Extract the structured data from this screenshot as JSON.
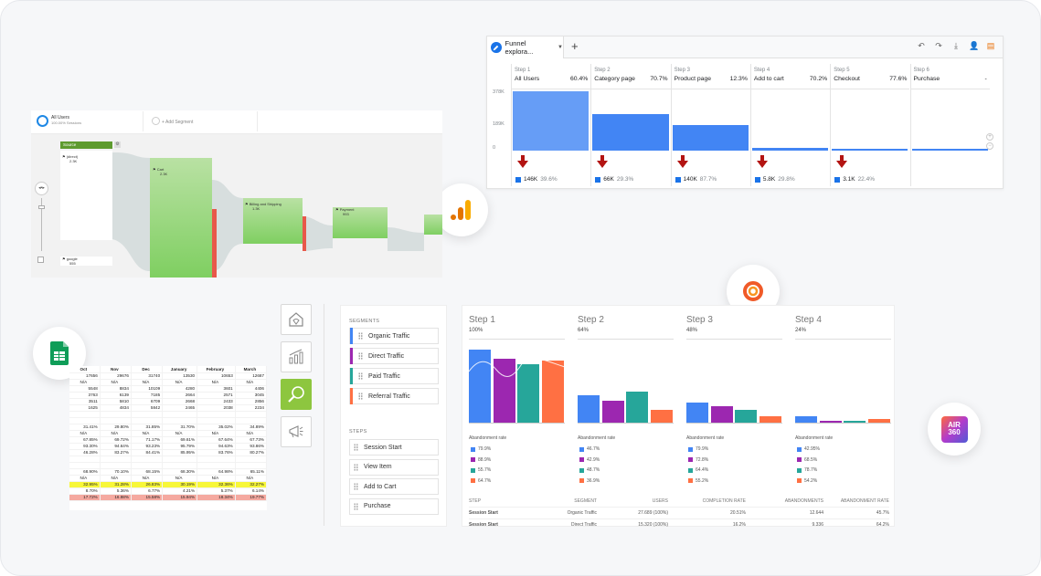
{
  "ga": {
    "tab_label": "Funnel explora...",
    "steps": [
      {
        "step": "Step 1",
        "name": "All Users",
        "pct": "60.4%",
        "drop": "146K",
        "drop_pct": "39.6%"
      },
      {
        "step": "Step 2",
        "name": "Category page",
        "pct": "70.7%",
        "drop": "66K",
        "drop_pct": "29.3%"
      },
      {
        "step": "Step 3",
        "name": "Product page",
        "pct": "12.3%",
        "drop": "140K",
        "drop_pct": "87.7%"
      },
      {
        "step": "Step 4",
        "name": "Add to cart",
        "pct": "70.2%",
        "drop": "5.8K",
        "drop_pct": "29.8%"
      },
      {
        "step": "Step 5",
        "name": "Checkout",
        "pct": "77.6%",
        "drop": "3.1K",
        "drop_pct": "22.4%"
      },
      {
        "step": "Step 6",
        "name": "Purchase",
        "pct": "-",
        "drop": "",
        "drop_pct": ""
      }
    ],
    "axis": [
      "378K",
      "189K",
      "0"
    ],
    "bar_values_k": [
      368,
      223,
      158,
      19,
      14,
      10
    ]
  },
  "ua": {
    "segment_name": "All Users",
    "segment_sub": "100.00% Sessions",
    "add_segment": "+ Add Segment",
    "source_label": "Source",
    "nodes": {
      "direct": "(direct)",
      "direct_val": "2.3K",
      "cart": "Cart",
      "cart_val": "2.3K",
      "billing": "Billing and Shipping",
      "billing_val": "1.3K",
      "payment": "Payment",
      "payment_val": "993",
      "google": "google",
      "google_val": "555"
    }
  },
  "sheet": {
    "header": [
      "Oct",
      "Nov",
      "Dec",
      "January",
      "February",
      "March"
    ],
    "rows": [
      [
        "17656",
        "29676",
        "31740",
        "13530",
        "10653",
        "12687"
      ],
      [
        "N/A",
        "N/A",
        "N/A",
        "N/A",
        "N/A",
        "N/A"
      ],
      [
        "5548",
        "8834",
        "10109",
        "4280",
        "3601",
        "4406"
      ],
      [
        "3763",
        "6139",
        "7185",
        "2664",
        "2571",
        "3045"
      ],
      [
        "3511",
        "5810",
        "6709",
        "2668",
        "2433",
        "2856"
      ],
      [
        "1625",
        "4834",
        "5842",
        "2465",
        "2038",
        "2234"
      ]
    ],
    "rows2": [
      [
        "31.41%",
        "29.80%",
        "31.85%",
        "31.70%",
        "35.02%",
        "34.89%"
      ],
      [
        "N/A",
        "N/A",
        "N/A",
        "N/A",
        "N/A",
        "N/A"
      ],
      [
        "67.85%",
        "69.72%",
        "71.17%",
        "69.61%",
        "67.64%",
        "67.73%"
      ],
      [
        "93.30%",
        "94.64%",
        "93.23%",
        "95.79%",
        "94.63%",
        "93.86%"
      ],
      [
        "46.28%",
        "83.27%",
        "84.41%",
        "85.95%",
        "83.76%",
        "80.27%"
      ]
    ],
    "rows3": [
      [
        "68.90%",
        "70.10%",
        "68.15%",
        "68.30%",
        "64.98%",
        "65.11%"
      ],
      [
        "N/A",
        "N/A",
        "N/A",
        "N/A",
        "N/A",
        "N/A"
      ]
    ],
    "yellow": [
      "32.95%",
      "31.28%",
      "26.83%",
      "30.19%",
      "32.36%",
      "32.27%"
    ],
    "plain": [
      "8.70%",
      "5.36%",
      "6.77%",
      "4.21%",
      "5.37%",
      "6.14%"
    ],
    "pink": [
      "17.72%",
      "16.98%",
      "15.58%",
      "15.94%",
      "18.34%",
      "19.77%"
    ]
  },
  "segments": {
    "heading": "SEGMENTS",
    "items": [
      {
        "label": "Organic Traffic",
        "color": "#4285f4"
      },
      {
        "label": "Direct Traffic",
        "color": "#9c27b0"
      },
      {
        "label": "Paid Traffic",
        "color": "#26a69a"
      },
      {
        "label": "Referral Traffic",
        "color": "#ff7043"
      }
    ],
    "steps_heading": "STEPS",
    "steps": [
      "Session Start",
      "View Item",
      "Add to Cart",
      "Purchase"
    ]
  },
  "funnel": {
    "colors": [
      "#4285f4",
      "#9c27b0",
      "#26a69a",
      "#ff7043"
    ],
    "steps": [
      {
        "title": "Step 1",
        "pct": "100%",
        "values": [
          100,
          88,
          80,
          85
        ],
        "aband": [
          "79.9%",
          "88.9%",
          "55.7%",
          "64.7%"
        ]
      },
      {
        "title": "Step 2",
        "pct": "64%",
        "values": [
          38,
          30,
          43,
          17
        ],
        "aband": [
          "46.7%",
          "42.9%",
          "48.7%",
          "36.9%"
        ]
      },
      {
        "title": "Step 3",
        "pct": "48%",
        "values": [
          28,
          22,
          17,
          9
        ],
        "aband": [
          "79.9%",
          "72.8%",
          "64.4%",
          "55.2%"
        ]
      },
      {
        "title": "Step 4",
        "pct": "24%",
        "values": [
          9,
          3,
          2,
          5
        ],
        "aband": [
          "42.95%",
          "68.5%",
          "78.7%",
          "54.2%"
        ]
      }
    ],
    "abandonment_label": "Abandonment rate",
    "table": {
      "headers": [
        "STEP",
        "SEGMENT",
        "USERS",
        "COMPLETION RATE",
        "ABANDONMENTS",
        "ABANDONMENT RATE"
      ],
      "rows": [
        [
          "Session Start",
          "Organic Traffic",
          "27.689 (100%)",
          "20.51%",
          "12.644",
          "45.7%"
        ],
        [
          "Session Start",
          "Direct Traffic",
          "15.320 (100%)",
          "16.2%",
          "9.336",
          "64.2%"
        ]
      ]
    }
  },
  "logos": {
    "ga": "google-analytics-icon",
    "grafana": "grafana-icon",
    "sheets": "google-sheets-icon",
    "air": [
      "AIR",
      "360"
    ]
  }
}
